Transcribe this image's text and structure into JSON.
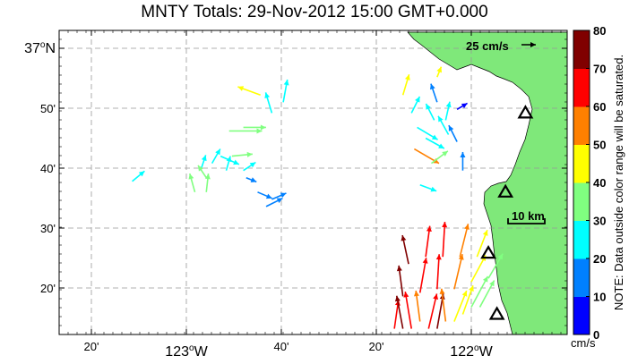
{
  "title": "MNTY Totals: 29-Nov-2012 15:00 GMT+0.000",
  "lat_labels": [
    {
      "lat": 37.0,
      "text": "37",
      "suffix": "N",
      "major": true
    },
    {
      "lat": 36.8333,
      "text": "50'",
      "major": false
    },
    {
      "lat": 36.6667,
      "text": "40'",
      "major": false
    },
    {
      "lat": 36.5,
      "text": "30'",
      "major": false
    },
    {
      "lat": 36.3333,
      "text": "20'",
      "major": false
    }
  ],
  "lon_labels": [
    {
      "lon": -123.3333,
      "text": "20'",
      "major": false
    },
    {
      "lon": -123.0,
      "text": "123",
      "suffix": "W",
      "major": true
    },
    {
      "lon": -122.6667,
      "text": "40'",
      "major": false
    },
    {
      "lon": -122.3333,
      "text": "20'",
      "major": false
    },
    {
      "lon": -122.0,
      "text": "122",
      "suffix": "W",
      "major": true
    }
  ],
  "reference_vector": {
    "label": "25 cm/s",
    "speed": 25
  },
  "scale_bar": {
    "label": "10 km"
  },
  "colorbar": {
    "min": 0,
    "max": 80,
    "ticks": [
      "0",
      "10",
      "20",
      "30",
      "40",
      "50",
      "60",
      "70",
      "80"
    ],
    "unit": "cm/s",
    "note": "NOTE: Data outside color range will be saturated.",
    "colors": [
      "#0000ff",
      "#0080ff",
      "#00ffff",
      "#80ff80",
      "#ffff00",
      "#ff8000",
      "#ff0000",
      "#800000"
    ]
  },
  "colors": {
    "land": "#7fe87a",
    "grid": "#999999"
  },
  "stations": [
    {
      "lon": -121.81,
      "lat": 36.82
    },
    {
      "lon": -121.88,
      "lat": 36.6
    },
    {
      "lon": -121.94,
      "lat": 36.43
    },
    {
      "lon": -121.91,
      "lat": 36.26
    }
  ],
  "vectors": [
    {
      "lon": -123.19,
      "lat": 36.63,
      "u": 12,
      "v": 10,
      "speed": 25
    },
    {
      "lon": -122.95,
      "lat": 36.66,
      "u": 5,
      "v": 15,
      "speed": 22
    },
    {
      "lon": -122.93,
      "lat": 36.64,
      "u": -8,
      "v": 12,
      "speed": 30
    },
    {
      "lon": -122.91,
      "lat": 36.68,
      "u": 8,
      "v": 14,
      "speed": 25
    },
    {
      "lon": -122.88,
      "lat": 36.7,
      "u": 18,
      "v": -8,
      "speed": 28
    },
    {
      "lon": -122.86,
      "lat": 36.66,
      "u": 4,
      "v": 14,
      "speed": 22
    },
    {
      "lon": -122.84,
      "lat": 36.7,
      "u": 20,
      "v": 2,
      "speed": 32
    },
    {
      "lon": -122.85,
      "lat": 36.77,
      "u": 32,
      "v": 0,
      "speed": 35
    },
    {
      "lon": -122.8,
      "lat": 36.78,
      "u": 22,
      "v": 0,
      "speed": 35
    },
    {
      "lon": -122.97,
      "lat": 36.6,
      "u": -5,
      "v": 18,
      "speed": 38
    },
    {
      "lon": -122.93,
      "lat": 36.6,
      "u": 2,
      "v": 18,
      "speed": 38
    },
    {
      "lon": -122.8,
      "lat": 36.66,
      "u": 12,
      "v": 8,
      "speed": 24
    },
    {
      "lon": -122.75,
      "lat": 36.6,
      "u": 14,
      "v": -6,
      "speed": 18
    },
    {
      "lon": -122.72,
      "lat": 36.56,
      "u": 16,
      "v": 8,
      "speed": 15
    },
    {
      "lon": -122.7,
      "lat": 36.58,
      "u": 14,
      "v": 6,
      "speed": 18
    },
    {
      "lon": -122.79,
      "lat": 36.64,
      "u": 10,
      "v": -4,
      "speed": 15
    },
    {
      "lon": -122.74,
      "lat": 36.87,
      "u": -22,
      "v": 8,
      "speed": 42
    },
    {
      "lon": -122.7,
      "lat": 36.82,
      "u": -6,
      "v": 20,
      "speed": 25
    },
    {
      "lon": -122.66,
      "lat": 36.85,
      "u": 4,
      "v": 22,
      "speed": 27
    },
    {
      "lon": -122.24,
      "lat": 36.87,
      "u": 6,
      "v": 20,
      "speed": 42
    },
    {
      "lon": -122.21,
      "lat": 36.82,
      "u": 8,
      "v": 16,
      "speed": 27
    },
    {
      "lon": -122.19,
      "lat": 36.78,
      "u": 20,
      "v": -12,
      "speed": 25
    },
    {
      "lon": -122.16,
      "lat": 36.75,
      "u": 18,
      "v": -10,
      "speed": 25
    },
    {
      "lon": -122.13,
      "lat": 36.8,
      "u": -8,
      "v": 16,
      "speed": 24
    },
    {
      "lon": -122.12,
      "lat": 36.85,
      "u": -6,
      "v": 18,
      "speed": 18
    },
    {
      "lon": -122.09,
      "lat": 36.8,
      "u": 4,
      "v": 18,
      "speed": 22
    },
    {
      "lon": -122.08,
      "lat": 36.76,
      "u": -10,
      "v": 18,
      "speed": 26
    },
    {
      "lon": -122.05,
      "lat": 36.74,
      "u": -8,
      "v": 16,
      "speed": 14
    },
    {
      "lon": -122.2,
      "lat": 36.72,
      "u": 24,
      "v": -14,
      "speed": 58
    },
    {
      "lon": -122.14,
      "lat": 36.68,
      "u": 16,
      "v": 12,
      "speed": 30
    },
    {
      "lon": -122.03,
      "lat": 36.66,
      "u": 0,
      "v": 18,
      "speed": 14
    },
    {
      "lon": -122.12,
      "lat": 36.92,
      "u": 4,
      "v": 10,
      "speed": 46
    },
    {
      "lon": -122.18,
      "lat": 36.62,
      "u": 16,
      "v": -6,
      "speed": 25
    },
    {
      "lon": -122.05,
      "lat": 36.83,
      "u": 10,
      "v": 6,
      "speed": 8
    },
    {
      "lon": -122.27,
      "lat": 36.22,
      "u": 4,
      "v": 28,
      "speed": 62
    },
    {
      "lon": -122.24,
      "lat": 36.22,
      "u": -6,
      "v": 32,
      "speed": 74
    },
    {
      "lon": -122.21,
      "lat": 36.22,
      "u": -6,
      "v": 36,
      "speed": 68
    },
    {
      "lon": -122.18,
      "lat": 36.24,
      "u": -4,
      "v": 30,
      "speed": 55
    },
    {
      "lon": -122.15,
      "lat": 36.22,
      "u": 8,
      "v": 34,
      "speed": 62
    },
    {
      "lon": -122.12,
      "lat": 36.22,
      "u": 6,
      "v": 34,
      "speed": 72
    },
    {
      "lon": -122.09,
      "lat": 36.24,
      "u": -4,
      "v": 32,
      "speed": 58
    },
    {
      "lon": -122.06,
      "lat": 36.24,
      "u": 12,
      "v": 30,
      "speed": 48
    },
    {
      "lon": -122.03,
      "lat": 36.26,
      "u": 10,
      "v": 28,
      "speed": 42
    },
    {
      "lon": -122.0,
      "lat": 36.28,
      "u": 16,
      "v": 30,
      "speed": 38
    },
    {
      "lon": -121.97,
      "lat": 36.28,
      "u": 14,
      "v": 26,
      "speed": 35
    },
    {
      "lon": -122.24,
      "lat": 36.31,
      "u": -4,
      "v": 30,
      "speed": 75
    },
    {
      "lon": -122.18,
      "lat": 36.32,
      "u": 6,
      "v": 34,
      "speed": 62
    },
    {
      "lon": -122.12,
      "lat": 36.33,
      "u": 2,
      "v": 34,
      "speed": 65
    },
    {
      "lon": -122.06,
      "lat": 36.33,
      "u": 8,
      "v": 34,
      "speed": 58
    },
    {
      "lon": -122.0,
      "lat": 36.35,
      "u": 14,
      "v": 26,
      "speed": 40
    },
    {
      "lon": -122.16,
      "lat": 36.42,
      "u": 4,
      "v": 30,
      "speed": 66
    },
    {
      "lon": -122.1,
      "lat": 36.42,
      "u": 2,
      "v": 34,
      "speed": 64
    },
    {
      "lon": -122.04,
      "lat": 36.42,
      "u": 8,
      "v": 32,
      "speed": 55
    },
    {
      "lon": -121.98,
      "lat": 36.42,
      "u": 10,
      "v": 26,
      "speed": 42
    },
    {
      "lon": -121.94,
      "lat": 36.36,
      "u": 14,
      "v": 24,
      "speed": 30
    },
    {
      "lon": -122.22,
      "lat": 36.4,
      "u": -6,
      "v": 28,
      "speed": 72
    }
  ]
}
